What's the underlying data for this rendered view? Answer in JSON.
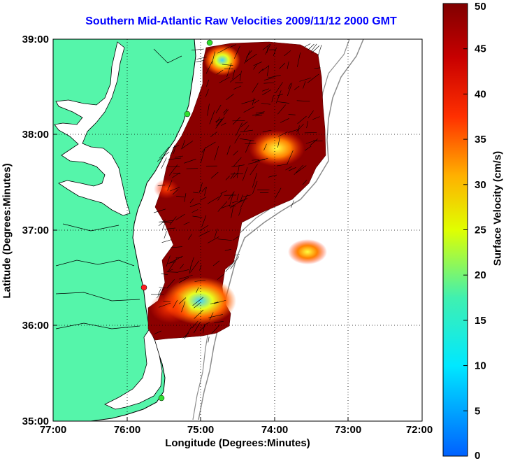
{
  "title": "Southern Mid-Atlantic Raw Velocities 2009/11/12 2000 GMT",
  "xlabel": "Longitude (Degrees:Minutes)",
  "ylabel": "Latitude (Degrees:Minutes)",
  "colorbar_label": "Surface Velocity (cm/s)",
  "x_ticks": [
    "77:00",
    "76:00",
    "75:00",
    "74:00",
    "73:00",
    "72:00"
  ],
  "y_ticks": [
    "39:00",
    "38:00",
    "37:00",
    "36:00",
    "35:00"
  ],
  "colorbar_ticks": [
    "0",
    "5",
    "10",
    "15",
    "20",
    "25",
    "30",
    "35",
    "40",
    "45",
    "50"
  ],
  "colors": {
    "land": "#55f5aa",
    "coastline": "#000000",
    "bathymetry": "#8c8c8c",
    "title": "#0000ff",
    "velocity_high": "#8b0000",
    "grid": "#000000"
  }
}
